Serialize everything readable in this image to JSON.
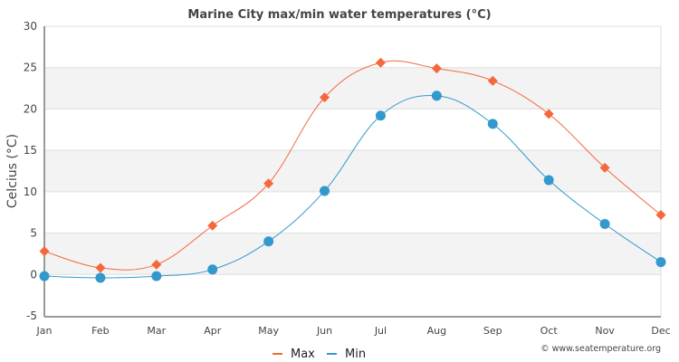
{
  "chart_data": {
    "type": "line",
    "title": "Marine City max/min water temperatures (°C)",
    "xlabel": "",
    "ylabel": "Celcius (°C)",
    "categories": [
      "Jan",
      "Feb",
      "Mar",
      "Apr",
      "May",
      "Jun",
      "Jul",
      "Aug",
      "Sep",
      "Oct",
      "Nov",
      "Dec"
    ],
    "ylim": [
      -5,
      30
    ],
    "yticks": [
      -5,
      0,
      5,
      10,
      15,
      20,
      25,
      30
    ],
    "grid": true,
    "series": [
      {
        "name": "Max",
        "color": "#f4683a",
        "marker": "diamond",
        "values": [
          2.8,
          0.8,
          1.2,
          5.9,
          11.0,
          21.4,
          25.6,
          24.9,
          23.4,
          19.4,
          12.9,
          7.2
        ]
      },
      {
        "name": "Min",
        "color": "#3399cc",
        "marker": "circle",
        "values": [
          -0.2,
          -0.4,
          -0.2,
          0.6,
          4.0,
          10.1,
          19.2,
          21.6,
          18.2,
          11.4,
          6.1,
          1.5
        ]
      }
    ],
    "legend_position": "bottom-center",
    "credit": "© www.seatemperature.org"
  }
}
